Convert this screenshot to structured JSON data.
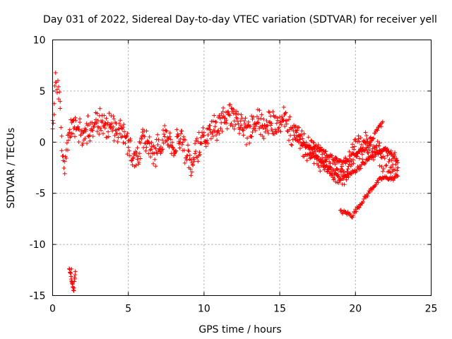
{
  "chart_data": {
    "type": "scatter",
    "title": "Day 031 of 2022, Sidereal Day-to-day VTEC variation (SDTVAR) for receiver yell",
    "xlabel": "GPS time / hours",
    "ylabel": "SDTVAR / TECUs",
    "xlim": [
      0,
      25
    ],
    "ylim": [
      -15,
      10
    ],
    "xticks": [
      0,
      5,
      10,
      15,
      20,
      25
    ],
    "xtick_labels": [
      "0",
      "5",
      "10",
      "15",
      "20",
      "25"
    ],
    "yticks": [
      -15,
      -10,
      -5,
      0,
      5,
      10
    ],
    "ytick_labels": [
      "-15",
      "-10",
      "-5",
      "0",
      "5",
      "10"
    ],
    "grid": true,
    "marker": "plus",
    "color": "#ff0000",
    "series": [
      {
        "name": "SDTVAR",
        "trace": [
          [
            0.0,
            1.0
          ],
          [
            0.1,
            3.5
          ],
          [
            0.2,
            5.5
          ],
          [
            0.3,
            5.5
          ],
          [
            0.4,
            5.0
          ],
          [
            0.5,
            3.5
          ],
          [
            0.6,
            0.0
          ],
          [
            0.7,
            -1.5
          ],
          [
            0.8,
            -2.5
          ],
          [
            0.9,
            -1.5
          ],
          [
            1.0,
            0.0
          ],
          [
            1.2,
            1.0
          ],
          [
            1.4,
            1.5
          ],
          [
            1.6,
            2.0
          ],
          [
            1.8,
            1.0
          ],
          [
            2.0,
            0.0
          ],
          [
            2.2,
            1.0
          ],
          [
            2.4,
            1.5
          ],
          [
            2.6,
            1.5
          ],
          [
            2.8,
            2.0
          ],
          [
            3.0,
            2.0
          ],
          [
            3.2,
            2.5
          ],
          [
            3.4,
            2.0
          ],
          [
            3.6,
            1.5
          ],
          [
            3.8,
            1.5
          ],
          [
            4.0,
            1.5
          ],
          [
            4.2,
            1.0
          ],
          [
            4.4,
            1.0
          ],
          [
            4.6,
            1.0
          ],
          [
            4.8,
            0.5
          ],
          [
            5.0,
            0.0
          ],
          [
            5.2,
            -1.0
          ],
          [
            5.4,
            -2.0
          ],
          [
            5.6,
            -1.5
          ],
          [
            5.8,
            -0.5
          ],
          [
            6.0,
            0.5
          ],
          [
            6.2,
            0.0
          ],
          [
            6.4,
            -0.5
          ],
          [
            6.6,
            -1.5
          ],
          [
            6.8,
            -1.0
          ],
          [
            7.0,
            -0.5
          ],
          [
            7.2,
            0.0
          ],
          [
            7.4,
            0.5
          ],
          [
            7.6,
            0.5
          ],
          [
            7.8,
            0.0
          ],
          [
            8.0,
            -0.5
          ],
          [
            8.2,
            0.0
          ],
          [
            8.4,
            0.5
          ],
          [
            8.6,
            0.0
          ],
          [
            8.8,
            -1.0
          ],
          [
            9.0,
            -2.0
          ],
          [
            9.2,
            -2.5
          ],
          [
            9.4,
            -1.5
          ],
          [
            9.6,
            -0.5
          ],
          [
            9.8,
            0.0
          ],
          [
            10.0,
            0.5
          ],
          [
            10.2,
            0.0
          ],
          [
            10.4,
            1.0
          ],
          [
            10.6,
            1.5
          ],
          [
            10.8,
            1.0
          ],
          [
            11.0,
            1.5
          ],
          [
            11.2,
            2.0
          ],
          [
            11.4,
            2.0
          ],
          [
            11.6,
            2.5
          ],
          [
            11.8,
            2.5
          ],
          [
            12.0,
            2.5
          ],
          [
            12.2,
            2.0
          ],
          [
            12.4,
            2.0
          ],
          [
            12.6,
            1.5
          ],
          [
            12.8,
            1.0
          ],
          [
            13.0,
            1.0
          ],
          [
            13.2,
            1.5
          ],
          [
            13.4,
            2.0
          ],
          [
            13.6,
            2.5
          ],
          [
            13.8,
            1.5
          ],
          [
            14.0,
            1.0
          ],
          [
            14.2,
            1.5
          ],
          [
            14.4,
            2.0
          ],
          [
            14.6,
            2.0
          ],
          [
            14.8,
            1.5
          ],
          [
            15.0,
            1.5
          ],
          [
            15.2,
            2.0
          ],
          [
            15.4,
            2.5
          ],
          [
            15.6,
            1.5
          ],
          [
            15.8,
            0.5
          ],
          [
            16.0,
            0.5
          ],
          [
            16.2,
            0.5
          ],
          [
            16.4,
            0.0
          ],
          [
            16.6,
            0.0
          ],
          [
            16.8,
            -0.5
          ],
          [
            17.0,
            -0.5
          ],
          [
            17.2,
            -1.0
          ],
          [
            17.4,
            -1.0
          ],
          [
            17.6,
            -1.5
          ],
          [
            17.8,
            -1.5
          ],
          [
            18.0,
            -2.0
          ],
          [
            18.2,
            -2.0
          ],
          [
            18.4,
            -2.5
          ],
          [
            18.6,
            -3.0
          ],
          [
            18.8,
            -3.0
          ],
          [
            19.0,
            -3.0
          ],
          [
            19.2,
            -3.0
          ],
          [
            19.4,
            -2.5
          ],
          [
            19.6,
            -2.0
          ],
          [
            19.8,
            -1.0
          ],
          [
            20.0,
            -0.5
          ],
          [
            20.2,
            -0.5
          ],
          [
            20.4,
            -0.5
          ],
          [
            20.6,
            0.0
          ],
          [
            20.8,
            0.0
          ],
          [
            21.0,
            -0.5
          ],
          [
            21.2,
            -1.0
          ],
          [
            21.4,
            -1.0
          ],
          [
            21.6,
            -1.0
          ],
          [
            21.8,
            -1.5
          ],
          [
            22.0,
            -1.5
          ],
          [
            22.2,
            -1.5
          ],
          [
            22.4,
            -2.0
          ],
          [
            22.6,
            -2.0
          ],
          [
            22.8,
            -2.5
          ]
        ],
        "branch_upper": [
          [
            16.0,
            0.5
          ],
          [
            16.4,
            0.0
          ],
          [
            16.8,
            -0.5
          ],
          [
            17.2,
            -0.5
          ],
          [
            17.6,
            -0.5
          ],
          [
            18.0,
            -1.0
          ],
          [
            18.4,
            -1.5
          ],
          [
            18.8,
            -1.8
          ],
          [
            19.2,
            -2.0
          ],
          [
            19.6,
            -1.5
          ],
          [
            20.0,
            -1.0
          ],
          [
            20.4,
            -0.8
          ],
          [
            20.8,
            -0.5
          ],
          [
            21.0,
            0.0
          ],
          [
            21.2,
            0.5
          ],
          [
            21.4,
            1.0
          ],
          [
            21.6,
            1.5
          ],
          [
            21.8,
            2.0
          ]
        ],
        "branch_lower": [
          [
            17.0,
            -1.0
          ],
          [
            17.4,
            -1.5
          ],
          [
            17.8,
            -2.0
          ],
          [
            18.2,
            -2.5
          ],
          [
            18.6,
            -3.0
          ],
          [
            19.0,
            -3.5
          ],
          [
            19.4,
            -3.3
          ],
          [
            19.8,
            -3.0
          ],
          [
            20.2,
            -2.5
          ],
          [
            20.6,
            -2.0
          ],
          [
            21.0,
            -1.5
          ],
          [
            21.4,
            -1.0
          ],
          [
            21.8,
            -0.8
          ],
          [
            22.2,
            -0.8
          ],
          [
            22.6,
            -1.5
          ],
          [
            22.8,
            -2.0
          ]
        ],
        "tail_low": [
          [
            19.0,
            -6.8
          ],
          [
            19.4,
            -6.9
          ],
          [
            19.8,
            -7.2
          ],
          [
            20.0,
            -6.7
          ],
          [
            20.2,
            -6.3
          ],
          [
            20.4,
            -5.9
          ],
          [
            20.6,
            -5.5
          ],
          [
            20.8,
            -5.1
          ],
          [
            21.0,
            -4.7
          ],
          [
            21.2,
            -4.3
          ],
          [
            21.4,
            -4.0
          ],
          [
            21.6,
            -3.7
          ],
          [
            21.8,
            -3.5
          ],
          [
            22.0,
            -3.5
          ],
          [
            22.2,
            -3.5
          ],
          [
            22.4,
            -3.6
          ],
          [
            22.6,
            -3.5
          ],
          [
            22.8,
            -3.3
          ]
        ],
        "outlier_cluster": [
          [
            1.1,
            -12.2
          ],
          [
            1.15,
            -12.6
          ],
          [
            1.2,
            -13.0
          ],
          [
            1.25,
            -13.5
          ],
          [
            1.3,
            -13.9
          ],
          [
            1.35,
            -14.2
          ],
          [
            1.4,
            -14.5
          ],
          [
            1.45,
            -13.4
          ],
          [
            1.5,
            -12.8
          ],
          [
            1.25,
            -12.4
          ]
        ]
      }
    ]
  }
}
